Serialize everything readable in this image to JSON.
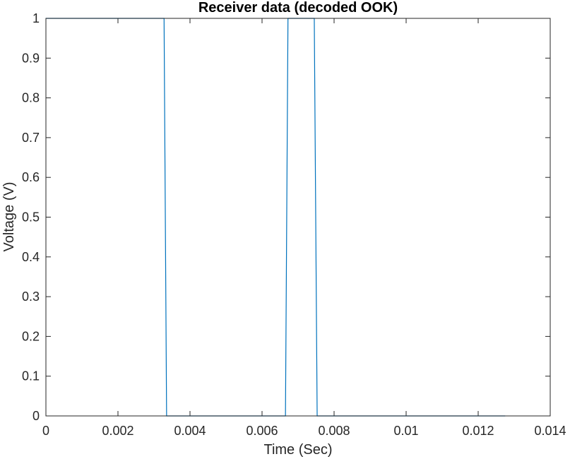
{
  "chart_data": {
    "type": "line",
    "title": "Receiver data (decoded OOK)",
    "xlabel": "Time (Sec)",
    "ylabel": "Voltage (V)",
    "xlim": [
      0,
      0.014
    ],
    "ylim": [
      0,
      1
    ],
    "x_ticks": [
      0,
      0.002,
      0.004,
      0.006,
      0.008,
      0.01,
      0.012,
      0.014
    ],
    "x_tick_labels": [
      "0",
      "0.002",
      "0.004",
      "0.006",
      "0.008",
      "0.01",
      "0.012",
      "0.014"
    ],
    "y_ticks": [
      0,
      0.1,
      0.2,
      0.3,
      0.4,
      0.5,
      0.6,
      0.7,
      0.8,
      0.9,
      1
    ],
    "y_tick_labels": [
      "0",
      "0.1",
      "0.2",
      "0.3",
      "0.4",
      "0.5",
      "0.6",
      "0.7",
      "0.8",
      "0.9",
      "1"
    ],
    "grid": false,
    "line_color": "#0072BD",
    "axis_color": "#262626",
    "series": [
      {
        "x": [
          0,
          0.00328,
          0.00335,
          0.00665,
          0.00672,
          0.00745,
          0.00753,
          0.01275
        ],
        "y": [
          1,
          1,
          0,
          0,
          1,
          1,
          0,
          0
        ]
      }
    ]
  }
}
